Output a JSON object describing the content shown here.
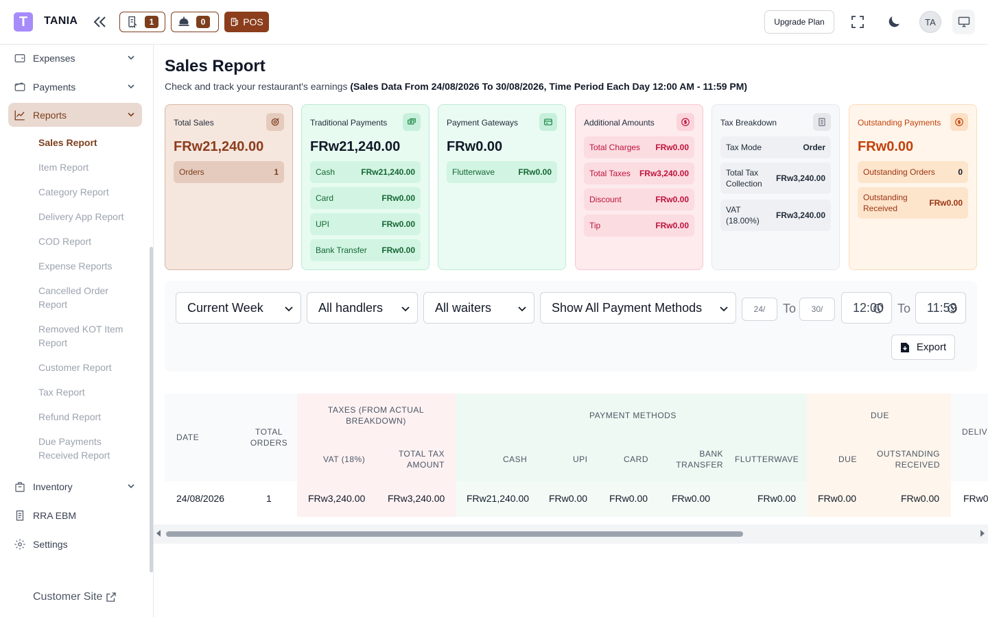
{
  "header": {
    "logo_letter": "T",
    "brand": "TANIA",
    "orders_count": "1",
    "kitchen_count": "0",
    "pos_label": "POS",
    "upgrade_label": "Upgrade Plan",
    "avatar_initials": "TA"
  },
  "sidebar": {
    "items": [
      {
        "label": "Expenses"
      },
      {
        "label": "Payments"
      },
      {
        "label": "Reports"
      },
      {
        "label": "Inventory"
      },
      {
        "label": "RRA EBM"
      },
      {
        "label": "Settings"
      }
    ],
    "report_subitems": [
      "Sales Report",
      "Item Report",
      "Category Report",
      "Delivery App Report",
      "COD Report",
      "Expense Reports",
      "Cancelled Order Report",
      "Removed KOT Item Report",
      "Customer Report",
      "Tax Report",
      "Refund Report",
      "Due Payments Received Report"
    ],
    "customer_site": "Customer Site"
  },
  "page": {
    "title": "Sales Report",
    "subtitle": "Check and track your restaurant's earnings",
    "subtitle_bold": "(Sales Data From 24/08/2026 To 30/08/2026, Time Period Each Day 12:00 AM - 11:59 PM)"
  },
  "cards": {
    "total_sales": {
      "title": "Total Sales",
      "value": "FRw21,240.00",
      "orders_label": "Orders",
      "orders_value": "1"
    },
    "traditional": {
      "title": "Traditional Payments",
      "value": "FRw21,240.00",
      "rows": [
        {
          "label": "Cash",
          "value": "FRw21,240.00"
        },
        {
          "label": "Card",
          "value": "FRw0.00"
        },
        {
          "label": "UPI",
          "value": "FRw0.00"
        },
        {
          "label": "Bank Transfer",
          "value": "FRw0.00"
        }
      ]
    },
    "gateways": {
      "title": "Payment Gateways",
      "value": "FRw0.00",
      "rows": [
        {
          "label": "Flutterwave",
          "value": "FRw0.00"
        }
      ]
    },
    "additional": {
      "title": "Additional Amounts",
      "rows": [
        {
          "label": "Total Charges",
          "value": "FRw0.00"
        },
        {
          "label": "Total Taxes",
          "value": "FRw3,240.00"
        },
        {
          "label": "Discount",
          "value": "FRw0.00"
        },
        {
          "label": "Tip",
          "value": "FRw0.00"
        }
      ]
    },
    "tax": {
      "title": "Tax Breakdown",
      "rows": [
        {
          "label": "Tax Mode",
          "value": "Order"
        },
        {
          "label": "Total Tax Collection",
          "value": "FRw3,240.00"
        },
        {
          "label": "VAT (18.00%)",
          "value": "FRw3,240.00"
        }
      ]
    },
    "outstanding": {
      "title": "Outstanding Payments",
      "value": "FRw0.00",
      "rows": [
        {
          "label": "Outstanding Orders",
          "value": "0"
        },
        {
          "label": "Outstanding Received",
          "value": "FRw0.00"
        }
      ]
    }
  },
  "filters": {
    "period": "Current Week",
    "handlers": "All handlers",
    "waiters": "All waiters",
    "payment_methods": "Show All Payment Methods",
    "date_from": "24/",
    "to_label": "To",
    "date_to": "30/",
    "time_from": "12:00",
    "time_to": "11:59",
    "export_label": "Export"
  },
  "table": {
    "group_headers": {
      "taxes": "TAXES (FROM ACTUAL BREAKDOWN)",
      "payment_methods": "PAYMENT METHODS",
      "due": "DUE",
      "delivery": "DELIVE"
    },
    "columns": {
      "date": "DATE",
      "total_orders": "TOTAL ORDERS",
      "vat": "VAT (18%)",
      "total_tax": "TOTAL TAX AMOUNT",
      "cash": "CASH",
      "upi": "UPI",
      "card": "CARD",
      "bank_transfer": "BANK TRANSFER",
      "flutterwave": "FLUTTERWAVE",
      "due": "DUE",
      "outstanding_received": "OUTSTANDING RECEIVED"
    },
    "row": {
      "date": "24/08/2026",
      "total_orders": "1",
      "vat": "FRw3,240.00",
      "total_tax": "FRw3,240.00",
      "cash": "FRw21,240.00",
      "upi": "FRw0.00",
      "card": "FRw0.00",
      "bank_transfer": "FRw0.00",
      "flutterwave": "FRw0.00",
      "due": "FRw0.00",
      "outstanding_received": "FRw0.00",
      "delivery": "FRw0"
    }
  }
}
